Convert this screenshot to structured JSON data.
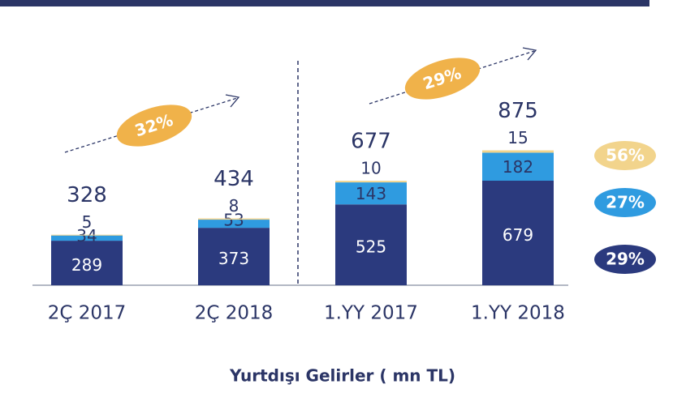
{
  "chart_data": {
    "type": "stacked_bar",
    "title": "Yurtdışı Gelirler ( mn TL)",
    "categories": [
      "2Ç 2017",
      "2Ç 2018",
      "1.YY 2017",
      "1.YY 2018"
    ],
    "series": [
      {
        "color": "#2b3a7e",
        "values": [
          289,
          373,
          525,
          679
        ],
        "growth": "29%"
      },
      {
        "color": "#2f9be0",
        "values": [
          34,
          53,
          143,
          182
        ],
        "growth": "27%"
      },
      {
        "color": "#f2d48c",
        "values": [
          5,
          8,
          10,
          15
        ],
        "growth": "56%"
      }
    ],
    "totals": [
      328,
      434,
      677,
      875
    ],
    "annotations": [
      "32%",
      "29%"
    ]
  }
}
